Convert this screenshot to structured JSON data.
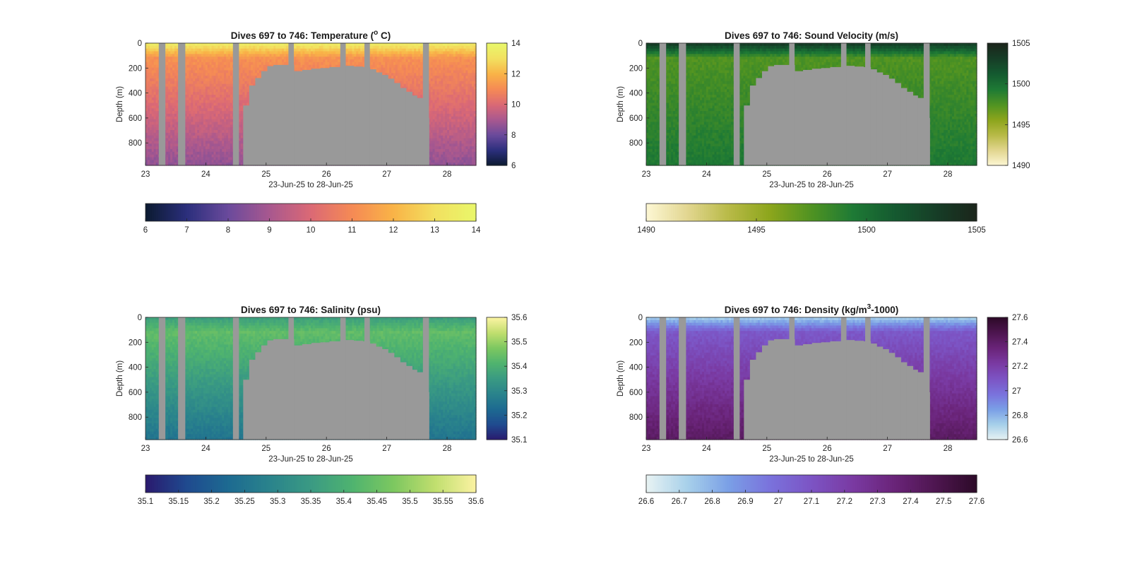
{
  "figure": {
    "background": "#ffffff",
    "mask_color": "#999999"
  },
  "chart_data": [
    {
      "id": "temperature",
      "type": "heatmap",
      "title": "Dives 697 to 746: Temperature (",
      "title_sup": "o",
      "title_tail": " C)",
      "xlabel": "23-Jun-25 to 28-Jun-25",
      "ylabel": "Depth (m)",
      "x_ticks": [
        "23",
        "24",
        "25",
        "26",
        "27",
        "28"
      ],
      "y_ticks": [
        "0",
        "200",
        "400",
        "600",
        "800"
      ],
      "xlim": [
        23,
        28.48
      ],
      "ylim": [
        0,
        980
      ],
      "colorbar_side": {
        "ticks": [
          "6",
          "8",
          "10",
          "12",
          "14"
        ],
        "range": [
          6,
          14
        ]
      },
      "colorbar_bottom": {
        "ticks": [
          "6",
          "7",
          "8",
          "9",
          "10",
          "11",
          "12",
          "13",
          "14"
        ],
        "range": [
          6,
          14
        ]
      },
      "colormap": [
        "#0b1a30",
        "#2b2f7c",
        "#6a4a9c",
        "#a8588f",
        "#db6975",
        "#f58a55",
        "#f9b347",
        "#f2e060",
        "#e9f76a"
      ],
      "profile": {
        "surface": 13.6,
        "mid": 11.2,
        "deep": 8.6
      }
    },
    {
      "id": "sound-velocity",
      "type": "heatmap",
      "title": "Dives 697 to 746: Sound Velocity (m/s)",
      "title_sup": "",
      "title_tail": "",
      "xlabel": "23-Jun-25 to 28-Jun-25",
      "ylabel": "Depth (m)",
      "x_ticks": [
        "23",
        "24",
        "25",
        "26",
        "27",
        "28"
      ],
      "y_ticks": [
        "0",
        "200",
        "400",
        "600",
        "800"
      ],
      "xlim": [
        23,
        28.48
      ],
      "ylim": [
        0,
        980
      ],
      "colorbar_side": {
        "ticks": [
          "1490",
          "1495",
          "1500",
          "1505"
        ],
        "range": [
          1490,
          1505
        ]
      },
      "colorbar_bottom": {
        "ticks": [
          "1490",
          "1495",
          "1500",
          "1505"
        ],
        "range": [
          1490,
          1505
        ]
      },
      "colormap": [
        "#fdf7d4",
        "#e2d690",
        "#b8ba47",
        "#8ca51c",
        "#4f9322",
        "#1e7a35",
        "#155a30",
        "#163e27",
        "#1b251b"
      ],
      "profile": {
        "surface": 1503.5,
        "mid": 1497.5,
        "deep": 1499.5
      }
    },
    {
      "id": "salinity",
      "type": "heatmap",
      "title": "Dives 697 to 746: Salinity (psu)",
      "title_sup": "",
      "title_tail": "",
      "xlabel": "23-Jun-25 to 28-Jun-25",
      "ylabel": "Depth (m)",
      "x_ticks": [
        "23",
        "24",
        "25",
        "26",
        "27",
        "28"
      ],
      "y_ticks": [
        "0",
        "200",
        "400",
        "600",
        "800"
      ],
      "xlim": [
        23,
        28.48
      ],
      "ylim": [
        0,
        980
      ],
      "colorbar_side": {
        "ticks": [
          "35.1",
          "35.2",
          "35.3",
          "35.4",
          "35.5",
          "35.6"
        ],
        "range": [
          35.1,
          35.6
        ]
      },
      "colorbar_bottom": {
        "ticks": [
          "35.1",
          "35.15",
          "35.2",
          "35.25",
          "35.3",
          "35.35",
          "35.4",
          "35.45",
          "35.5",
          "35.55",
          "35.6"
        ],
        "range": [
          35.1,
          35.6
        ]
      },
      "colormap": [
        "#2a1a6e",
        "#1f4a8f",
        "#1d6a91",
        "#2a838c",
        "#3a9a83",
        "#4fb36f",
        "#7cc760",
        "#c0de6e",
        "#fbf3a2"
      ],
      "profile": {
        "surface": 35.36,
        "mid": 35.44,
        "deep": 35.25
      }
    },
    {
      "id": "density",
      "type": "heatmap",
      "title": "Dives 697 to 746: Density (kg/m",
      "title_sup": "3",
      "title_tail": "-1000)",
      "xlabel": "23-Jun-25 to 28-Jun-25",
      "ylabel": "Depth (m)",
      "x_ticks": [
        "23",
        "24",
        "25",
        "26",
        "27",
        "28"
      ],
      "y_ticks": [
        "0",
        "200",
        "400",
        "600",
        "800"
      ],
      "xlim": [
        23,
        28.48
      ],
      "ylim": [
        0,
        980
      ],
      "colorbar_side": {
        "ticks": [
          "26.6",
          "26.8",
          "27",
          "27.2",
          "27.4",
          "27.6"
        ],
        "range": [
          26.6,
          27.6
        ]
      },
      "colorbar_bottom": {
        "ticks": [
          "26.6",
          "26.7",
          "26.8",
          "26.9",
          "27",
          "27.1",
          "27.2",
          "27.3",
          "27.4",
          "27.5",
          "27.6"
        ],
        "range": [
          26.6,
          27.6
        ]
      },
      "colormap": [
        "#e8f3f3",
        "#a7d0ea",
        "#7a9fe6",
        "#7a72dc",
        "#7c54c4",
        "#7a3aa2",
        "#6a2479",
        "#4e1650",
        "#2d0a28"
      ],
      "profile": {
        "surface": 26.72,
        "mid": 27.08,
        "deep": 27.42
      }
    }
  ]
}
